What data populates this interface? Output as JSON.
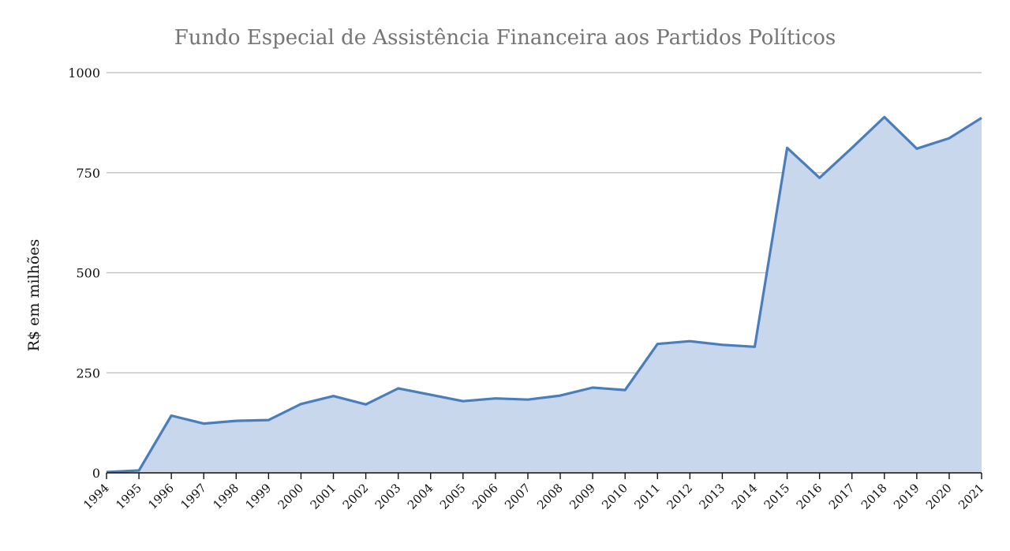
{
  "chart_data": {
    "type": "area",
    "title": "Fundo Especial de Assistência Financeira aos Partidos Políticos",
    "xlabel": "",
    "ylabel": "R$ em milhões",
    "ylim": [
      0,
      1000
    ],
    "yticks": [
      "0",
      "250",
      "500",
      "750",
      "1000"
    ],
    "grid": true,
    "legend": "none",
    "colors": {
      "line": "#4a7ebb",
      "fill": "#c9d7ec",
      "grid": "#b9bcc2"
    },
    "x": [
      "1994",
      "1995",
      "1996",
      "1997",
      "1998",
      "1999",
      "2000",
      "2001",
      "2002",
      "2003",
      "2004",
      "2005",
      "2006",
      "2007",
      "2008",
      "2009",
      "2010",
      "2011",
      "2012",
      "2013",
      "2014",
      "2015",
      "2016",
      "2017",
      "2018",
      "2019",
      "2020",
      "2021"
    ],
    "values": [
      2,
      6,
      143,
      123,
      130,
      132,
      172,
      192,
      171,
      211,
      195,
      179,
      186,
      183,
      193,
      213,
      207,
      322,
      329,
      320,
      315,
      812,
      737,
      812,
      889,
      810,
      836,
      887
    ]
  }
}
